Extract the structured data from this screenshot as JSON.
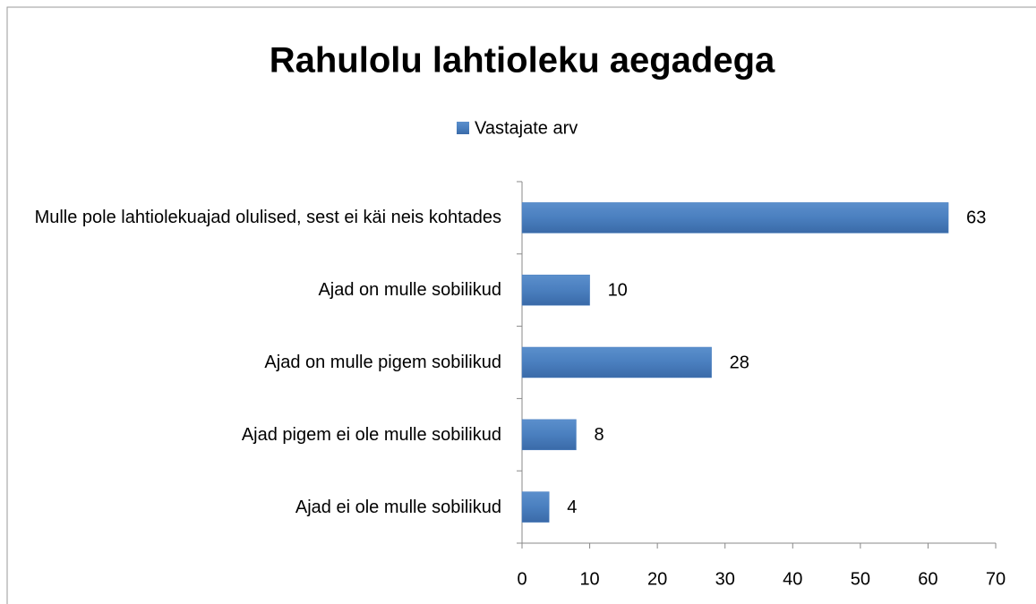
{
  "chart_data": {
    "type": "bar",
    "orientation": "horizontal",
    "title": "Rahulolu lahtioleku aegadega",
    "categories": [
      "Mulle pole lahtiolekuajad olulised, sest ei käi neis kohtades",
      "Ajad on mulle sobilikud",
      "Ajad on mulle pigem sobilikud",
      "Ajad pigem ei ole mulle sobilikud",
      "Ajad ei ole mulle sobilikud"
    ],
    "series": [
      {
        "name": "Vastajate arv",
        "color": "#4a7fbf",
        "values": [
          63,
          10,
          28,
          8,
          4
        ]
      }
    ],
    "xlim": [
      0,
      70
    ],
    "xticks": [
      0,
      10,
      20,
      30,
      40,
      50,
      60,
      70
    ],
    "legend": "top",
    "grid": false
  }
}
